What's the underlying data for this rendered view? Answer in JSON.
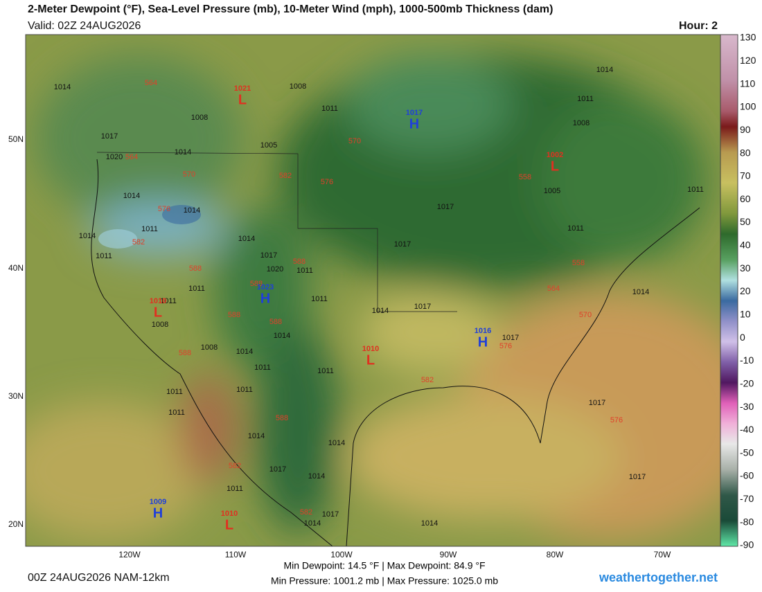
{
  "header": {
    "title": "2-Meter Dewpoint (°F), Sea-Level Pressure (mb), 10-Meter Wind (mph), 1000-500mb Thickness (dam)",
    "valid": "Valid: 02Z 24AUG2026",
    "hour": "Hour: 2"
  },
  "colorbar": {
    "ticks": [
      130,
      120,
      110,
      100,
      90,
      80,
      70,
      60,
      50,
      40,
      30,
      20,
      10,
      0,
      -10,
      -20,
      -30,
      -40,
      -50,
      -60,
      -70,
      -80,
      -90
    ]
  },
  "map": {
    "lon_labels": [
      "120W",
      "110W",
      "100W",
      "90W",
      "80W",
      "70W"
    ],
    "lat_labels": [
      "50N",
      "40N",
      "30N",
      "20N"
    ],
    "pressure_centers": [
      {
        "letter": "L",
        "value": "1021"
      },
      {
        "letter": "H",
        "value": "1017"
      },
      {
        "letter": "L",
        "value": "1002"
      },
      {
        "letter": "H",
        "value": "1023"
      },
      {
        "letter": "L",
        "value": "1010"
      },
      {
        "letter": "H",
        "value": "1016"
      },
      {
        "letter": "L",
        "value": "1010"
      },
      {
        "letter": "H",
        "value": "1009"
      },
      {
        "letter": "L",
        "value": "1010"
      }
    ],
    "thickness_labels": [
      "564",
      "564",
      "570",
      "576",
      "582",
      "582",
      "576",
      "570",
      "588",
      "588",
      "588",
      "588",
      "588",
      "588",
      "582",
      "576",
      "570",
      "564",
      "558",
      "558",
      "576",
      "588",
      "582",
      "582"
    ],
    "isobar_labels": [
      "1014",
      "1008",
      "1008",
      "1005",
      "1011",
      "1017",
      "1020",
      "1014",
      "1014",
      "1014",
      "1011",
      "1014",
      "1011",
      "1014",
      "1017",
      "1020",
      "1011",
      "1011",
      "1014",
      "1017",
      "1017",
      "1017",
      "1011",
      "1005",
      "1008",
      "1011",
      "1014",
      "1011",
      "1014",
      "1017",
      "1017",
      "1017",
      "1014",
      "1014",
      "1014",
      "1017",
      "1014",
      "1011",
      "1011",
      "1014",
      "1014",
      "1011",
      "1008",
      "1008",
      "1011",
      "1011",
      "1011",
      "1011",
      "1011",
      "1014",
      "1017"
    ]
  },
  "footer": {
    "run": "00Z 24AUG2026 NAM-12km",
    "line1": "Min Dewpoint:  14.5 °F | Max Dewpoint:  84.9 °F",
    "line2": "Min Pressure: 1001.2 mb | Max Pressure: 1025.0 mb",
    "site": "weathertogether.net"
  }
}
